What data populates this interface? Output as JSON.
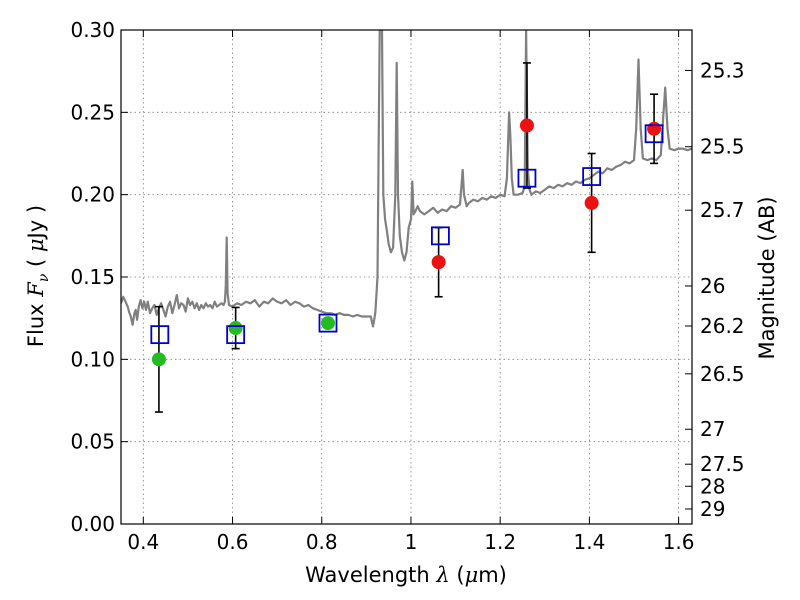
{
  "chart_data": {
    "type": "scatter",
    "title": "",
    "xlabel_prefix": "Wavelength ",
    "xlabel_symbol": "λ",
    "xlabel_unit_open": " (",
    "xlabel_unit_mu": "μ",
    "xlabel_unit_close": "m)",
    "ylabel_prefix": "Flux ",
    "ylabel_symbol_main": "F",
    "ylabel_symbol_sub": "ν",
    "ylabel_unit_open": " ( ",
    "ylabel_unit_mu": "μ",
    "ylabel_unit_close": "Jy )",
    "y2label": "Magnitude (AB)",
    "xlim": [
      0.35,
      1.63
    ],
    "ylim": [
      0.0,
      0.3
    ],
    "grid": true,
    "x_ticks": [
      {
        "value": 0.4,
        "label": "0.4"
      },
      {
        "value": 0.6,
        "label": "0.6"
      },
      {
        "value": 0.8,
        "label": "0.8"
      },
      {
        "value": 1.0,
        "label": "1"
      },
      {
        "value": 1.2,
        "label": "1.2"
      },
      {
        "value": 1.4,
        "label": "1.4"
      },
      {
        "value": 1.6,
        "label": "1.6"
      }
    ],
    "y_ticks": [
      {
        "value": 0.0,
        "label": "0.00"
      },
      {
        "value": 0.05,
        "label": "0.05"
      },
      {
        "value": 0.1,
        "label": "0.10"
      },
      {
        "value": 0.15,
        "label": "0.15"
      },
      {
        "value": 0.2,
        "label": "0.20"
      },
      {
        "value": 0.25,
        "label": "0.25"
      },
      {
        "value": 0.3,
        "label": "0.30"
      }
    ],
    "y2_ticks": [
      {
        "value": 25.3,
        "label": "25.3"
      },
      {
        "value": 25.5,
        "label": "25.5"
      },
      {
        "value": 25.7,
        "label": "25.7"
      },
      {
        "value": 26.0,
        "label": "26"
      },
      {
        "value": 26.2,
        "label": "26.2"
      },
      {
        "value": 26.5,
        "label": "26.5"
      },
      {
        "value": 27.0,
        "label": "27"
      },
      {
        "value": 27.5,
        "label": "27.5"
      },
      {
        "value": 28.0,
        "label": "28"
      },
      {
        "value": 29.0,
        "label": "29"
      }
    ],
    "colors": {
      "spectrum": "#808080",
      "green_points": "#22bb22",
      "red_points": "#ee1111",
      "model_squares": "#0000cc",
      "error_bars": "#000000",
      "grid": "#808080"
    },
    "spectrum": [
      [
        0.35,
        0.134
      ],
      [
        0.355,
        0.138
      ],
      [
        0.36,
        0.135
      ],
      [
        0.365,
        0.132
      ],
      [
        0.368,
        0.129
      ],
      [
        0.372,
        0.126
      ],
      [
        0.376,
        0.121
      ],
      [
        0.38,
        0.128
      ],
      [
        0.383,
        0.13
      ],
      [
        0.386,
        0.124
      ],
      [
        0.39,
        0.132
      ],
      [
        0.394,
        0.136
      ],
      [
        0.398,
        0.131
      ],
      [
        0.402,
        0.135
      ],
      [
        0.406,
        0.13
      ],
      [
        0.41,
        0.135
      ],
      [
        0.415,
        0.128
      ],
      [
        0.42,
        0.131
      ],
      [
        0.425,
        0.133
      ],
      [
        0.43,
        0.127
      ],
      [
        0.435,
        0.131
      ],
      [
        0.44,
        0.134
      ],
      [
        0.445,
        0.13
      ],
      [
        0.45,
        0.126
      ],
      [
        0.455,
        0.132
      ],
      [
        0.46,
        0.135
      ],
      [
        0.465,
        0.128
      ],
      [
        0.47,
        0.133
      ],
      [
        0.475,
        0.139
      ],
      [
        0.48,
        0.131
      ],
      [
        0.485,
        0.134
      ],
      [
        0.49,
        0.133
      ],
      [
        0.495,
        0.129
      ],
      [
        0.5,
        0.137
      ],
      [
        0.505,
        0.133
      ],
      [
        0.51,
        0.135
      ],
      [
        0.515,
        0.131
      ],
      [
        0.52,
        0.134
      ],
      [
        0.525,
        0.13
      ],
      [
        0.53,
        0.133
      ],
      [
        0.535,
        0.131
      ],
      [
        0.54,
        0.134
      ],
      [
        0.545,
        0.132
      ],
      [
        0.55,
        0.133
      ],
      [
        0.555,
        0.131
      ],
      [
        0.56,
        0.135
      ],
      [
        0.565,
        0.132
      ],
      [
        0.57,
        0.133
      ],
      [
        0.575,
        0.134
      ],
      [
        0.58,
        0.133
      ],
      [
        0.583,
        0.135
      ],
      [
        0.585,
        0.145
      ],
      [
        0.587,
        0.174
      ],
      [
        0.589,
        0.14
      ],
      [
        0.592,
        0.133
      ],
      [
        0.6,
        0.132
      ],
      [
        0.61,
        0.134
      ],
      [
        0.62,
        0.133
      ],
      [
        0.63,
        0.135
      ],
      [
        0.64,
        0.134
      ],
      [
        0.65,
        0.136
      ],
      [
        0.66,
        0.132
      ],
      [
        0.67,
        0.135
      ],
      [
        0.68,
        0.134
      ],
      [
        0.69,
        0.137
      ],
      [
        0.7,
        0.135
      ],
      [
        0.71,
        0.134
      ],
      [
        0.72,
        0.136
      ],
      [
        0.73,
        0.133
      ],
      [
        0.74,
        0.135
      ],
      [
        0.75,
        0.134
      ],
      [
        0.76,
        0.132
      ],
      [
        0.77,
        0.133
      ],
      [
        0.78,
        0.131
      ],
      [
        0.79,
        0.13
      ],
      [
        0.8,
        0.129
      ],
      [
        0.81,
        0.128
      ],
      [
        0.82,
        0.128
      ],
      [
        0.83,
        0.127
      ],
      [
        0.84,
        0.128
      ],
      [
        0.85,
        0.127
      ],
      [
        0.86,
        0.127
      ],
      [
        0.87,
        0.126
      ],
      [
        0.88,
        0.127
      ],
      [
        0.89,
        0.126
      ],
      [
        0.9,
        0.126
      ],
      [
        0.91,
        0.126
      ],
      [
        0.915,
        0.12
      ],
      [
        0.92,
        0.128
      ],
      [
        0.925,
        0.15
      ],
      [
        0.928,
        0.24
      ],
      [
        0.93,
        0.3
      ],
      [
        0.935,
        0.3
      ],
      [
        0.938,
        0.2
      ],
      [
        0.942,
        0.185
      ],
      [
        0.946,
        0.178
      ],
      [
        0.95,
        0.17
      ],
      [
        0.955,
        0.165
      ],
      [
        0.96,
        0.168
      ],
      [
        0.965,
        0.2
      ],
      [
        0.968,
        0.28
      ],
      [
        0.971,
        0.2
      ],
      [
        0.975,
        0.175
      ],
      [
        0.98,
        0.165
      ],
      [
        0.985,
        0.16
      ],
      [
        0.99,
        0.165
      ],
      [
        0.995,
        0.18
      ],
      [
        1.0,
        0.185
      ],
      [
        1.003,
        0.208
      ],
      [
        1.006,
        0.188
      ],
      [
        1.01,
        0.19
      ],
      [
        1.015,
        0.193
      ],
      [
        1.02,
        0.19
      ],
      [
        1.03,
        0.188
      ],
      [
        1.04,
        0.19
      ],
      [
        1.05,
        0.192
      ],
      [
        1.06,
        0.189
      ],
      [
        1.07,
        0.191
      ],
      [
        1.08,
        0.19
      ],
      [
        1.09,
        0.193
      ],
      [
        1.1,
        0.192
      ],
      [
        1.11,
        0.194
      ],
      [
        1.113,
        0.205
      ],
      [
        1.116,
        0.215
      ],
      [
        1.119,
        0.2
      ],
      [
        1.125,
        0.193
      ],
      [
        1.13,
        0.195
      ],
      [
        1.14,
        0.197
      ],
      [
        1.15,
        0.196
      ],
      [
        1.16,
        0.198
      ],
      [
        1.17,
        0.197
      ],
      [
        1.18,
        0.199
      ],
      [
        1.19,
        0.198
      ],
      [
        1.2,
        0.2
      ],
      [
        1.21,
        0.199
      ],
      [
        1.215,
        0.21
      ],
      [
        1.22,
        0.25
      ],
      [
        1.223,
        0.235
      ],
      [
        1.226,
        0.21
      ],
      [
        1.23,
        0.2
      ],
      [
        1.24,
        0.2
      ],
      [
        1.25,
        0.201
      ],
      [
        1.255,
        0.205
      ],
      [
        1.258,
        0.3
      ],
      [
        1.262,
        0.215
      ],
      [
        1.266,
        0.203
      ],
      [
        1.27,
        0.2
      ],
      [
        1.28,
        0.202
      ],
      [
        1.29,
        0.201
      ],
      [
        1.3,
        0.203
      ],
      [
        1.31,
        0.205
      ],
      [
        1.32,
        0.204
      ],
      [
        1.33,
        0.206
      ],
      [
        1.34,
        0.205
      ],
      [
        1.35,
        0.207
      ],
      [
        1.36,
        0.206
      ],
      [
        1.37,
        0.208
      ],
      [
        1.38,
        0.207
      ],
      [
        1.39,
        0.209
      ],
      [
        1.4,
        0.21
      ],
      [
        1.41,
        0.212
      ],
      [
        1.42,
        0.214
      ],
      [
        1.43,
        0.213
      ],
      [
        1.44,
        0.216
      ],
      [
        1.45,
        0.215
      ],
      [
        1.46,
        0.217
      ],
      [
        1.47,
        0.218
      ],
      [
        1.48,
        0.22
      ],
      [
        1.49,
        0.219
      ],
      [
        1.5,
        0.221
      ],
      [
        1.505,
        0.24
      ],
      [
        1.51,
        0.282
      ],
      [
        1.515,
        0.24
      ],
      [
        1.52,
        0.222
      ],
      [
        1.53,
        0.221
      ],
      [
        1.54,
        0.222
      ],
      [
        1.55,
        0.221
      ],
      [
        1.56,
        0.224
      ],
      [
        1.565,
        0.245
      ],
      [
        1.57,
        0.265
      ],
      [
        1.575,
        0.24
      ],
      [
        1.58,
        0.228
      ],
      [
        1.59,
        0.227
      ],
      [
        1.6,
        0.228
      ],
      [
        1.61,
        0.228
      ],
      [
        1.62,
        0.227
      ],
      [
        1.63,
        0.228
      ]
    ],
    "green_points": [
      {
        "x": 0.435,
        "y": 0.1,
        "err": 0.032
      },
      {
        "x": 0.607,
        "y": 0.119,
        "err": 0.0125
      },
      {
        "x": 0.814,
        "y": 0.122,
        "err": 0.0
      }
    ],
    "red_points": [
      {
        "x": 1.062,
        "y": 0.159,
        "err": 0.021
      },
      {
        "x": 1.26,
        "y": 0.242,
        "err": 0.038
      },
      {
        "x": 1.405,
        "y": 0.195,
        "err": 0.03
      },
      {
        "x": 1.545,
        "y": 0.24,
        "err": 0.021
      }
    ],
    "model_squares": [
      {
        "x": 0.437,
        "y": 0.115
      },
      {
        "x": 0.607,
        "y": 0.115
      },
      {
        "x": 0.814,
        "y": 0.122
      },
      {
        "x": 1.066,
        "y": 0.175
      },
      {
        "x": 1.26,
        "y": 0.21
      },
      {
        "x": 1.405,
        "y": 0.211
      },
      {
        "x": 1.545,
        "y": 0.237
      }
    ]
  }
}
